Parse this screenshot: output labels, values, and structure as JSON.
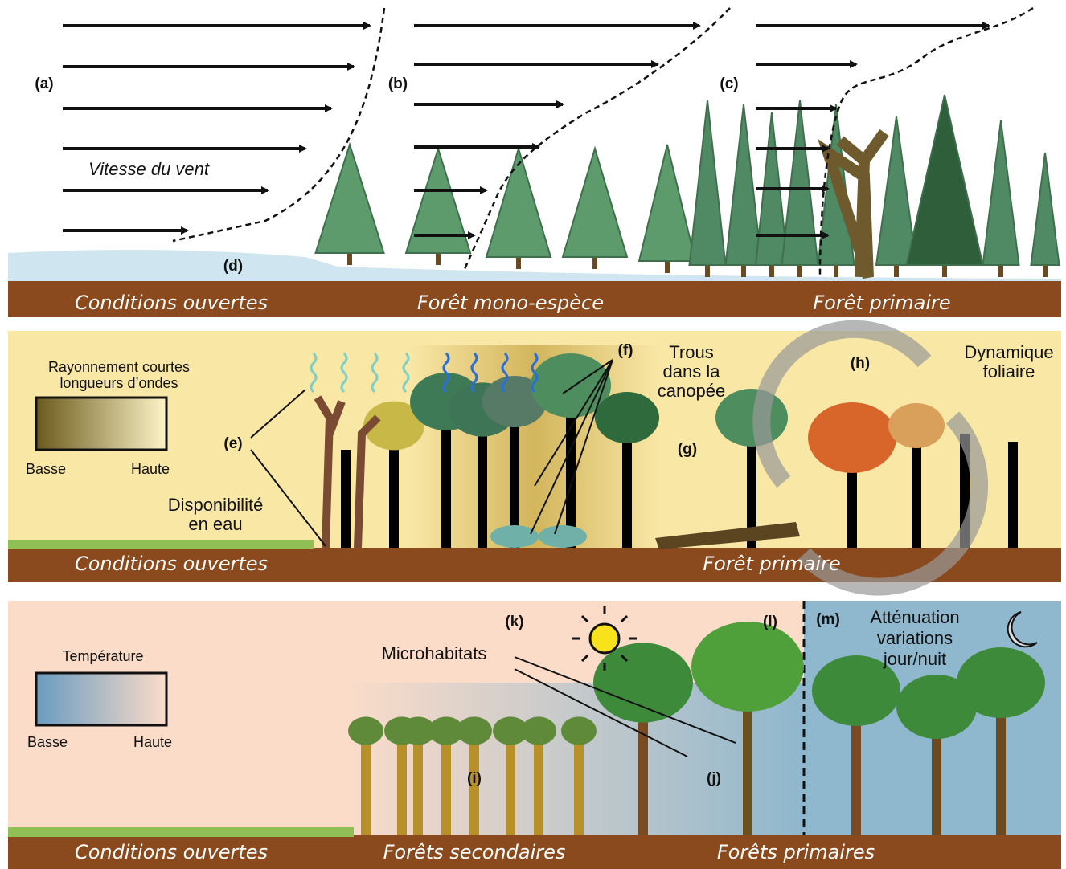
{
  "panels": [
    {
      "labels": [
        "(a)",
        "(b)",
        "(c)",
        "(d)"
      ],
      "wind_label": "Vitesse du vent",
      "ground": [
        "Conditions ouvertes",
        "Forêt mono-espèce",
        "Forêt primaire"
      ]
    },
    {
      "legend": {
        "title": [
          "Rayonnement courtes",
          "longueurs d’ondes"
        ],
        "low": "Basse",
        "high": "Haute"
      },
      "labels": [
        "(e)",
        "(f)",
        "(g)",
        "(h)"
      ],
      "notes": [
        [
          "Disponibilité",
          "en eau"
        ],
        [
          "Trous",
          "dans la",
          "canopée"
        ],
        [
          "Dynamique",
          "foliaire"
        ]
      ],
      "ground": [
        "Conditions ouvertes",
        "Forêt primaire"
      ]
    },
    {
      "legend": {
        "title": [
          "Température"
        ],
        "low": "Basse",
        "high": "Haute"
      },
      "labels": [
        "(i)",
        "(j)",
        "(k)",
        "(l)",
        "(m)"
      ],
      "notes": [
        [
          "Atténuation",
          "variations",
          "jour/nuit"
        ],
        [
          "Microhabitats"
        ]
      ],
      "ground": [
        "Conditions ouvertes",
        "Forêts secondaires",
        "Forêts primaires"
      ]
    }
  ]
}
